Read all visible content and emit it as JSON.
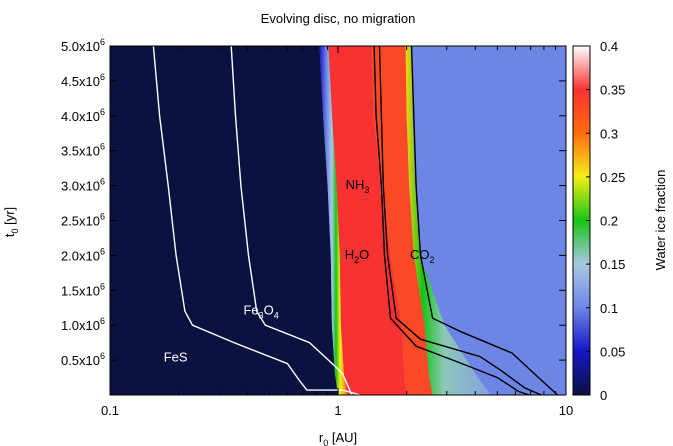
{
  "chart_data": {
    "type": "heatmap",
    "title": "Evolving disc, no migration",
    "xlabel": "r",
    "xlabel_sub": "0",
    "xlabel_unit": " [AU]",
    "ylabel": "t",
    "ylabel_sub": "0",
    "ylabel_unit": " [yr]",
    "x_scale": "log",
    "xlim": [
      0.1,
      10
    ],
    "ylim": [
      0,
      5000000
    ],
    "x_ticks": [
      {
        "value": 0.1,
        "label": "0.1"
      },
      {
        "value": 1,
        "label": "1"
      },
      {
        "value": 10,
        "label": "10"
      }
    ],
    "y_ticks": [
      {
        "value": 500000,
        "mant": "0.5x10",
        "exp": "6"
      },
      {
        "value": 1000000,
        "mant": "1.0x10",
        "exp": "6"
      },
      {
        "value": 1500000,
        "mant": "1.5x10",
        "exp": "6"
      },
      {
        "value": 2000000,
        "mant": "2.0x10",
        "exp": "6"
      },
      {
        "value": 2500000,
        "mant": "2.5x10",
        "exp": "6"
      },
      {
        "value": 3000000,
        "mant": "3.0x10",
        "exp": "6"
      },
      {
        "value": 3500000,
        "mant": "3.5x10",
        "exp": "6"
      },
      {
        "value": 4000000,
        "mant": "4.0x10",
        "exp": "6"
      },
      {
        "value": 4500000,
        "mant": "4.5x10",
        "exp": "6"
      },
      {
        "value": 5000000,
        "mant": "5.0x10",
        "exp": "6"
      }
    ],
    "colorbar": {
      "label": "Water ice fraction",
      "range": [
        0,
        0.4
      ],
      "ticks": [
        "0",
        "0.05",
        "0.1",
        "0.15",
        "0.2",
        "0.25",
        "0.3",
        "0.35",
        "0.4"
      ],
      "stops": [
        {
          "v": 0.0,
          "color": "#0c1240"
        },
        {
          "v": 0.05,
          "color": "#1515c8"
        },
        {
          "v": 0.1,
          "color": "#6d86e6"
        },
        {
          "v": 0.15,
          "color": "#a9c8e2"
        },
        {
          "v": 0.2,
          "color": "#16c416"
        },
        {
          "v": 0.25,
          "color": "#f5ef16"
        },
        {
          "v": 0.3,
          "color": "#ff6b12"
        },
        {
          "v": 0.35,
          "color": "#f83232"
        },
        {
          "v": 0.4,
          "color": "#ffffff"
        }
      ]
    },
    "regions": {
      "water_free_fraction": 0.0,
      "water_ice_fraction": 0.35,
      "water_nh3_fraction": 0.33,
      "beyond_co2_fraction": 0.1,
      "inner_transition_fraction": 0.11,
      "outer_transition_fraction": 0.15
    },
    "series": [
      {
        "name": "FeS",
        "label": "FeS",
        "label_at": [
          0.172,
          480000
        ],
        "line_color": "#ffffff",
        "points": [
          [
            0.155,
            5000000
          ],
          [
            0.165,
            4000000
          ],
          [
            0.18,
            3000000
          ],
          [
            0.195,
            2000000
          ],
          [
            0.213,
            1200000
          ],
          [
            0.23,
            1000000
          ],
          [
            0.35,
            750000
          ],
          [
            0.6,
            450000
          ],
          [
            0.68,
            200000
          ],
          [
            0.73,
            70000
          ],
          [
            1.05,
            70000
          ],
          [
            1.25,
            0
          ]
        ]
      },
      {
        "name": "Fe3O4",
        "label": "Fe",
        "label_sub": "3",
        "label_mid": "O",
        "label_sub2": "4",
        "label_at": [
          0.385,
          1150000
        ],
        "line_color": "#ffffff",
        "points": [
          [
            0.34,
            5000000
          ],
          [
            0.355,
            4000000
          ],
          [
            0.375,
            3000000
          ],
          [
            0.405,
            2000000
          ],
          [
            0.44,
            1200000
          ],
          [
            0.48,
            1000000
          ],
          [
            0.75,
            750000
          ],
          [
            0.98,
            400000
          ],
          [
            1.05,
            300000
          ],
          [
            1.15,
            0
          ]
        ]
      },
      {
        "name": "NH3",
        "label": "NH",
        "label_sub": "3",
        "label_at": [
          1.08,
          2950000
        ],
        "line_color": "#000000",
        "points": [
          [
            1.52,
            5000000
          ],
          [
            1.55,
            4000000
          ],
          [
            1.58,
            3000000
          ],
          [
            1.65,
            2000000
          ],
          [
            1.8,
            1100000
          ],
          [
            2.3,
            800000
          ],
          [
            4.2,
            550000
          ],
          [
            5.2,
            350000
          ],
          [
            6.6,
            100000
          ],
          [
            7.8,
            0
          ]
        ]
      },
      {
        "name": "H2O",
        "label": "H",
        "label_sub": "2",
        "label_mid": "O",
        "label_at": [
          1.07,
          1950000
        ],
        "line_color": "#000000",
        "points": [
          [
            1.44,
            5000000
          ],
          [
            1.47,
            4000000
          ],
          [
            1.55,
            3000000
          ],
          [
            1.6,
            2000000
          ],
          [
            1.7,
            1100000
          ],
          [
            2.2,
            700000
          ],
          [
            3.5,
            450000
          ],
          [
            5.0,
            250000
          ],
          [
            6.2,
            50000
          ],
          [
            6.9,
            0
          ]
        ]
      },
      {
        "name": "CO2",
        "label": "CO",
        "label_sub": "2",
        "label_at": [
          2.07,
          1950000
        ],
        "line_color": "#000000",
        "points": [
          [
            2.1,
            5000000
          ],
          [
            2.15,
            4000000
          ],
          [
            2.2,
            3000000
          ],
          [
            2.3,
            2000000
          ],
          [
            2.6,
            1100000
          ],
          [
            3.5,
            900000
          ],
          [
            5.8,
            600000
          ],
          [
            7.3,
            300000
          ],
          [
            8.5,
            100000
          ],
          [
            9.2,
            0
          ]
        ]
      }
    ],
    "boundaries": {
      "ice_line": [
        [
          0.83,
          5000000
        ],
        [
          0.86,
          4000000
        ],
        [
          0.9,
          3000000
        ],
        [
          0.93,
          2000000
        ],
        [
          0.94,
          1000000
        ],
        [
          0.97,
          300000
        ],
        [
          1.0,
          0
        ]
      ],
      "nh3_line": [
        [
          1.4,
          5000000
        ],
        [
          1.43,
          4000000
        ],
        [
          1.55,
          3000000
        ],
        [
          1.7,
          2000000
        ],
        [
          1.9,
          1000000
        ],
        [
          1.95,
          300000
        ],
        [
          2.0,
          0
        ]
      ],
      "co2_line": [
        [
          1.98,
          5000000
        ],
        [
          2.0,
          4000000
        ],
        [
          2.05,
          3000000
        ],
        [
          2.15,
          2000000
        ],
        [
          2.4,
          1000000
        ],
        [
          2.5,
          300000
        ],
        [
          2.6,
          0
        ]
      ]
    }
  }
}
